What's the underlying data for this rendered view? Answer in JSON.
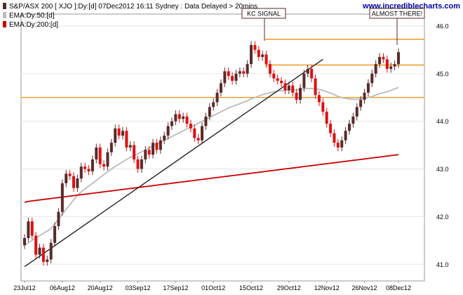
{
  "header": {
    "title": "S&P/ASX 200 [ XJO ]:Dy:[d]  07Dec2012 16:11 Sydney : Data Delayed > 20mins",
    "brand": "www.incrediblecharts.com"
  },
  "legend": [
    {
      "label": "EMA:Dy:50:[d]",
      "color": "#bbbbbb"
    },
    {
      "label": "EMA:Dy:200:[d]",
      "color": "#cc0000"
    }
  ],
  "annotations": {
    "kc_signal": "KC SIGNAL",
    "almost_there": "ALMOST THERE!"
  },
  "chart_data": {
    "type": "candlestick",
    "y_ticks": [
      41.0,
      42.0,
      43.0,
      44.0,
      45.0,
      46.0
    ],
    "y_tick_labels": [
      "41.0",
      "42.0",
      "43.0",
      "44.0",
      "45.0",
      "46.0"
    ],
    "ylim": [
      40.65,
      46.25
    ],
    "x_ticks": [
      {
        "label": "23Jul12",
        "index": 0
      },
      {
        "label": "06Aug12",
        "index": 10
      },
      {
        "label": "20Aug12",
        "index": 20
      },
      {
        "label": "03Sep12",
        "index": 30
      },
      {
        "label": "17Sep12",
        "index": 40
      },
      {
        "label": "01Oct12",
        "index": 50
      },
      {
        "label": "15Oct12",
        "index": 60
      },
      {
        "label": "29Oct12",
        "index": 70
      },
      {
        "label": "12Nov12",
        "index": 80
      },
      {
        "label": "26Nov12",
        "index": 90
      },
      {
        "label": "08Dec12",
        "index": 99
      }
    ],
    "close": [
      41.55,
      41.9,
      41.6,
      41.2,
      41.35,
      41.05,
      41.1,
      41.45,
      41.8,
      42.1,
      42.7,
      42.9,
      42.85,
      42.6,
      42.8,
      43.05,
      43.0,
      42.95,
      43.2,
      43.45,
      43.1,
      43.05,
      43.35,
      43.55,
      43.85,
      43.7,
      43.8,
      43.45,
      43.5,
      43.2,
      43.0,
      43.2,
      43.4,
      43.3,
      43.55,
      43.4,
      43.6,
      43.7,
      43.9,
      44.0,
      44.15,
      44.05,
      44.1,
      43.95,
      43.85,
      43.65,
      43.6,
      43.9,
      44.1,
      44.3,
      44.4,
      44.6,
      44.8,
      45.05,
      44.95,
      44.85,
      45.0,
      45.05,
      45.0,
      45.2,
      45.6,
      45.5,
      45.35,
      45.4,
      45.2,
      45.0,
      44.9,
      44.85,
      44.8,
      44.65,
      44.75,
      44.6,
      44.45,
      44.7,
      45.0,
      45.1,
      44.9,
      44.55,
      44.4,
      44.2,
      43.95,
      43.75,
      43.55,
      43.45,
      43.6,
      43.8,
      43.95,
      44.1,
      44.3,
      44.45,
      44.6,
      44.8,
      45.0,
      45.2,
      45.35,
      45.3,
      45.1,
      45.15,
      45.2,
      45.45
    ],
    "ema50": [
      41.4,
      41.45,
      41.5,
      41.55,
      41.6,
      41.65,
      41.7,
      41.75,
      41.85,
      41.95,
      42.05,
      42.15,
      42.25,
      42.35,
      42.45,
      42.52,
      42.58,
      42.64,
      42.7,
      42.76,
      42.82,
      42.88,
      42.94,
      43.0,
      43.05,
      43.1,
      43.15,
      43.2,
      43.24,
      43.28,
      43.32,
      43.36,
      43.4,
      43.44,
      43.48,
      43.52,
      43.56,
      43.6,
      43.64,
      43.68,
      43.72,
      43.76,
      43.8,
      43.84,
      43.88,
      43.92,
      43.96,
      44.0,
      44.04,
      44.08,
      44.12,
      44.16,
      44.2,
      44.24,
      44.28,
      44.31,
      44.34,
      44.37,
      44.4,
      44.43,
      44.47,
      44.5,
      44.53,
      44.56,
      44.58,
      44.6,
      44.62,
      44.63,
      44.64,
      44.65,
      44.66,
      44.66,
      44.66,
      44.67,
      44.68,
      44.69,
      44.69,
      44.68,
      44.67,
      44.65,
      44.62,
      44.59,
      44.56,
      44.52,
      44.5,
      44.48,
      44.47,
      44.46,
      44.46,
      44.47,
      44.48,
      44.5,
      44.52,
      44.55,
      44.58,
      44.6,
      44.62,
      44.65,
      44.68,
      44.71
    ],
    "ema200": [
      42.3,
      42.32,
      42.33,
      42.34,
      42.35,
      42.36,
      42.37,
      42.38,
      42.39,
      42.4,
      42.41,
      42.42,
      42.43,
      42.44,
      42.45,
      42.46,
      42.47,
      42.48,
      42.49,
      42.5,
      42.51,
      42.52,
      42.53,
      42.54,
      42.55,
      42.56,
      42.57,
      42.58,
      42.59,
      42.6,
      42.61,
      42.62,
      42.63,
      42.64,
      42.65,
      42.66,
      42.67,
      42.68,
      42.69,
      42.7,
      42.71,
      42.72,
      42.73,
      42.74,
      42.75,
      42.76,
      42.77,
      42.78,
      42.79,
      42.8,
      42.81,
      42.82,
      42.83,
      42.84,
      42.85,
      42.86,
      42.87,
      42.88,
      42.89,
      42.9,
      42.91,
      42.92,
      42.93,
      42.94,
      42.95,
      42.96,
      42.97,
      42.98,
      42.99,
      43.0,
      43.01,
      43.02,
      43.03,
      43.04,
      43.05,
      43.06,
      43.07,
      43.08,
      43.09,
      43.1,
      43.11,
      43.12,
      43.13,
      43.14,
      43.15,
      43.16,
      43.17,
      43.18,
      43.19,
      43.2,
      43.21,
      43.22,
      43.23,
      43.24,
      43.25,
      43.26,
      43.27,
      43.28,
      43.29,
      43.3
    ],
    "hlines": [
      45.72,
      45.18,
      44.5
    ],
    "trendline": {
      "from_index": 0,
      "from_value": 40.95,
      "to_index": 79,
      "to_value": 45.3
    }
  }
}
